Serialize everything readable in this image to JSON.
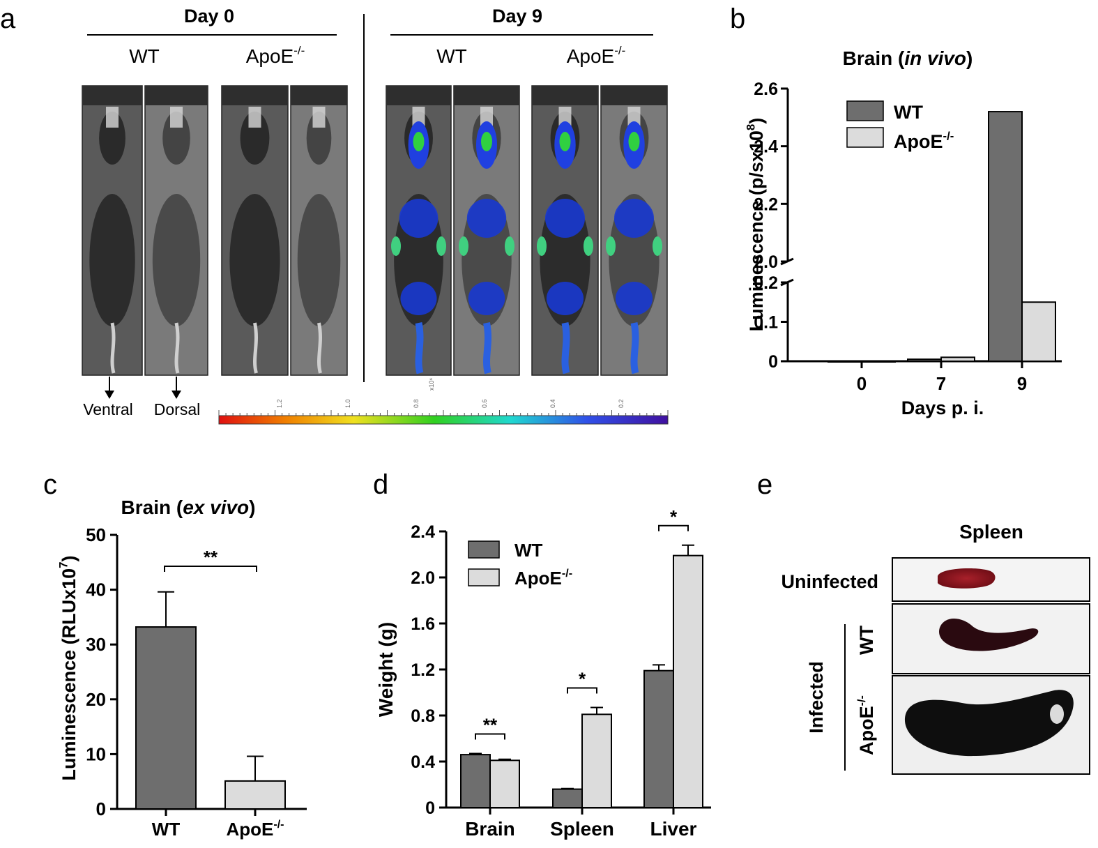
{
  "panels": {
    "a": {
      "letter": "a",
      "day0": "Day 0",
      "day9": "Day 9",
      "wt": "WT",
      "apoe": "ApoE",
      "apoe_sup": "-/-",
      "ventral": "Ventral",
      "dorsal": "Dorsal",
      "scale_ticks": [
        "1.2",
        "1.0",
        "0.8",
        "0.6",
        "0.4",
        "0.2"
      ],
      "scale_unit": "x10⁶"
    },
    "b": {
      "letter": "b"
    },
    "c": {
      "letter": "c"
    },
    "d": {
      "letter": "d"
    },
    "e": {
      "letter": "e",
      "title": "Spleen",
      "uninfected": "Uninfected",
      "infected": "Infected",
      "wt": "WT",
      "apoe": "ApoE",
      "apoe_sup": "-/-"
    }
  },
  "colors": {
    "wt_bar": "#6e6e6e",
    "apoe_bar": "#dcdcdc",
    "axis": "#000000"
  },
  "chart_data": [
    {
      "id": "b",
      "type": "bar",
      "title": "Brain (in vivo)",
      "title_main": "Brain (",
      "title_italic": "in vivo",
      "title_end": ")",
      "xlabel": "Days p. i.",
      "ylabel": "Luminescence (p/sx10",
      "ylabel_sup": "8",
      "ylabel_end": ")",
      "categories": [
        "0",
        "7",
        "9"
      ],
      "broken_axis": {
        "lower": [
          0,
          0.2
        ],
        "upper": [
          2.0,
          2.6
        ]
      },
      "yticks_lower": [
        "0",
        "0.1",
        "0.2"
      ],
      "yticks_upper": [
        "2.0",
        "2.2",
        "2.4",
        "2.6"
      ],
      "legend": [
        "WT",
        "ApoE"
      ],
      "legend_sup": "-/-",
      "legend_position": "top-left",
      "series": [
        {
          "name": "WT",
          "values": [
            0.0,
            0.005,
            2.52
          ]
        },
        {
          "name": "ApoE-/-",
          "values": [
            0.0,
            0.01,
            0.15
          ]
        }
      ]
    },
    {
      "id": "c",
      "type": "bar",
      "title": "Brain (ex vivo)",
      "title_main": "Brain (",
      "title_italic": "ex vivo",
      "title_end": ")",
      "ylabel": "Luminescence (RLUx10",
      "ylabel_sup": "7",
      "ylabel_end": ")",
      "ylim": [
        0,
        50
      ],
      "yticks": [
        "0",
        "10",
        "20",
        "30",
        "40",
        "50"
      ],
      "categories": [
        "WT",
        "ApoE"
      ],
      "category_sup": "-/-",
      "values": [
        33.2,
        5.1
      ],
      "errors": [
        6.4,
        4.5
      ],
      "significance": "**"
    },
    {
      "id": "d",
      "type": "bar",
      "ylabel": "Weight (g)",
      "ylim": [
        0,
        2.4
      ],
      "yticks": [
        "0",
        "0.4",
        "0.8",
        "1.2",
        "1.6",
        "2.0",
        "2.4"
      ],
      "categories": [
        "Brain",
        "Spleen",
        "Liver"
      ],
      "legend": [
        "WT",
        "ApoE"
      ],
      "legend_sup": "-/-",
      "legend_position": "top-left",
      "series": [
        {
          "name": "WT",
          "values": [
            0.46,
            0.16,
            1.19
          ],
          "errors": [
            0.01,
            0.005,
            0.05
          ]
        },
        {
          "name": "ApoE-/-",
          "values": [
            0.41,
            0.81,
            2.19
          ],
          "errors": [
            0.01,
            0.06,
            0.09
          ]
        }
      ],
      "significance": [
        "**",
        "*",
        "*"
      ]
    }
  ]
}
